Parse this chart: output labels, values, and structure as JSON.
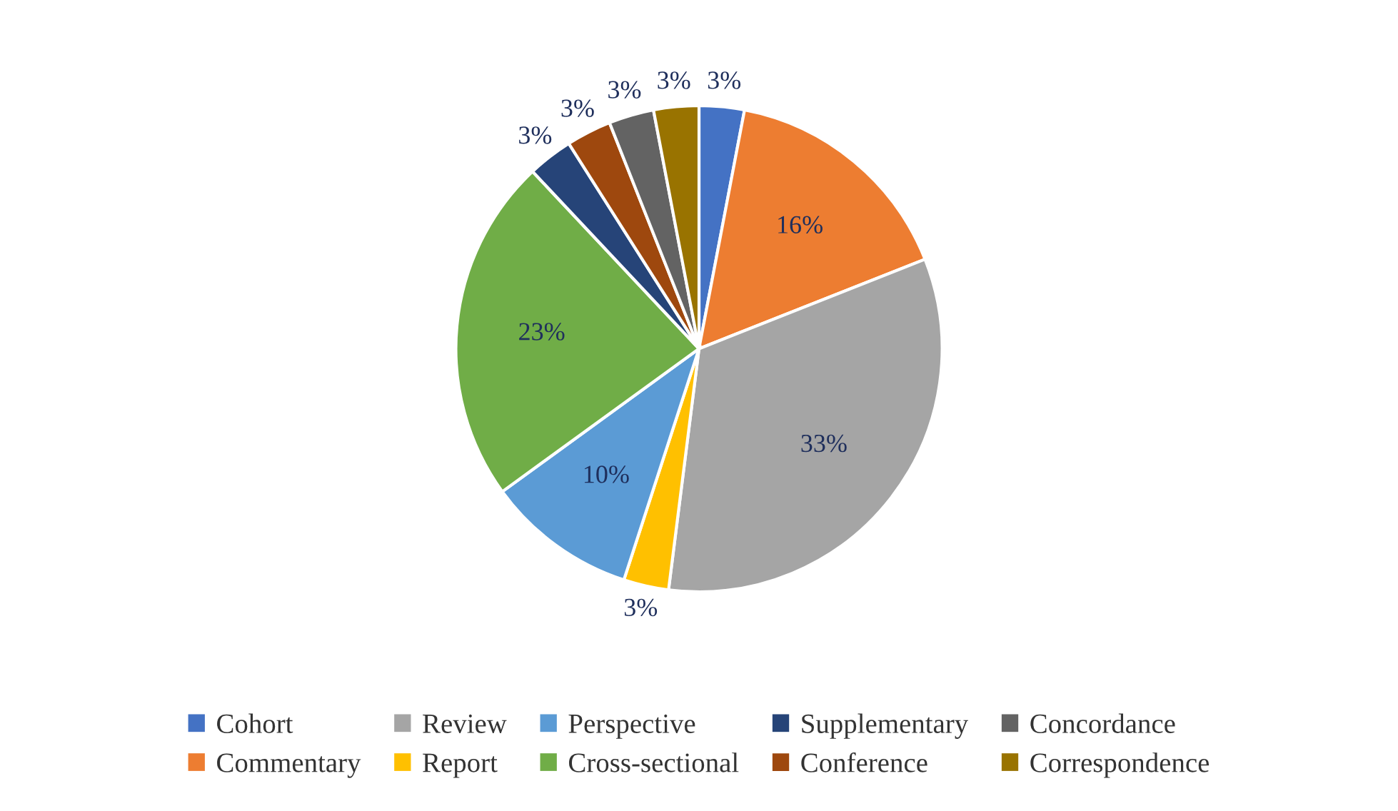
{
  "chart_data": {
    "type": "pie",
    "categories": [
      "Cohort",
      "Commentary",
      "Review",
      "Report",
      "Perspective",
      "Cross-sectional",
      "Supplementary",
      "Conference",
      "Concordance",
      "Correspondence"
    ],
    "values": [
      3,
      16,
      33,
      3,
      10,
      23,
      3,
      3,
      3,
      3
    ],
    "value_labels": [
      "3%",
      "16%",
      "33%",
      "3%",
      "10%",
      "23%",
      "3%",
      "3%",
      "3%",
      "3%"
    ],
    "colors": [
      "#4472c4",
      "#ed7d31",
      "#a5a5a5",
      "#ffc000",
      "#5b9bd5",
      "#70ad47",
      "#264478",
      "#9e480e",
      "#636363",
      "#997300"
    ],
    "legend": "bottom"
  }
}
